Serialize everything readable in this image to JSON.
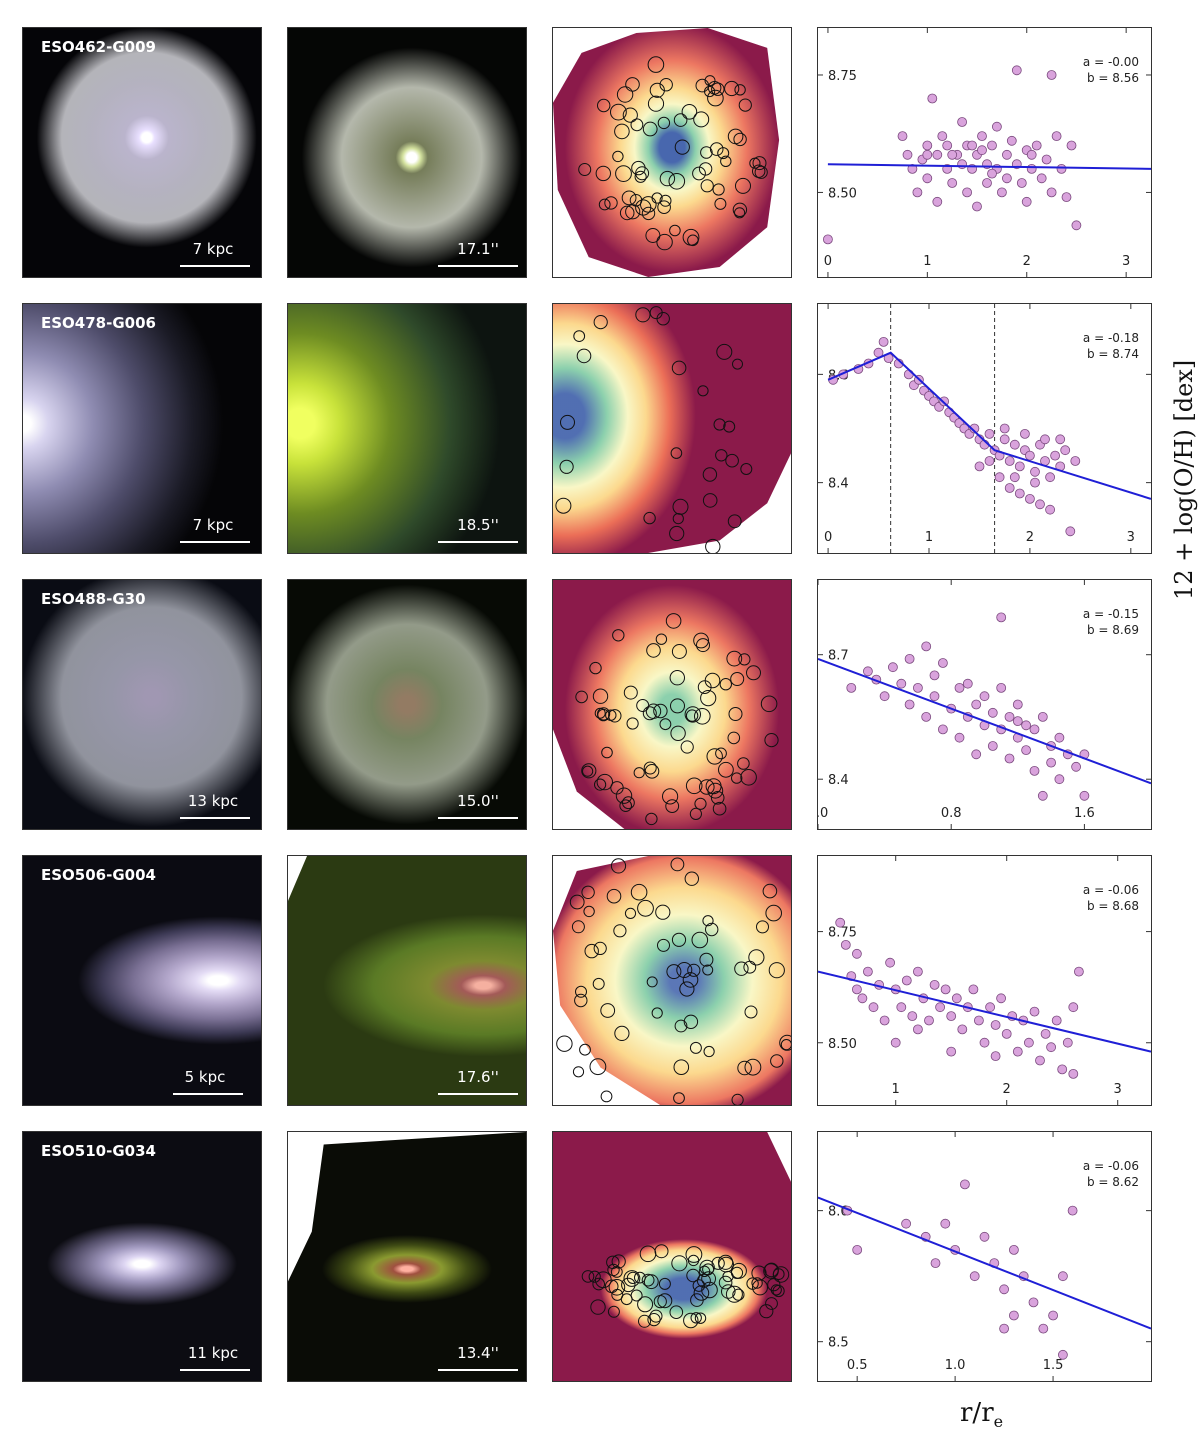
{
  "figure": {
    "ylabel": "12 + log(O/H) [dex]",
    "xlabel": "r/r",
    "xlabel_sub": "e"
  },
  "rows": [
    {
      "name": "ESO462-G009",
      "phys_scale": "7 kpc",
      "ang_scale": "17.1''"
    },
    {
      "name": "ESO478-G006",
      "phys_scale": "7 kpc",
      "ang_scale": "18.5''"
    },
    {
      "name": "ESO488-G30",
      "phys_scale": "13 kpc",
      "ang_scale": "15.0''"
    },
    {
      "name": "ESO506-G004",
      "phys_scale": "5 kpc",
      "ang_scale": "17.6''"
    },
    {
      "name": "ESO510-G034",
      "phys_scale": "11 kpc",
      "ang_scale": "13.4''"
    }
  ],
  "colors": {
    "points": "#d9a3dc",
    "point_edge": "#7a4a7e",
    "fit_line": "#1f1fd6"
  },
  "chart_data": [
    {
      "type": "scatter",
      "annotation_a": "a = -0.00",
      "annotation_b": "b = 8.56",
      "xlim": [
        -0.1,
        3.25
      ],
      "ylim": [
        8.32,
        8.85
      ],
      "xticks": [
        0,
        1,
        2,
        3
      ],
      "xtick_labels": [
        "0",
        "1",
        "2",
        "3"
      ],
      "yticks": [
        8.5,
        8.75
      ],
      "ytick_labels": [
        "8.50",
        "8.75"
      ],
      "fit": [
        [
          0.0,
          8.56
        ],
        [
          3.25,
          8.55
        ]
      ],
      "vlines": [],
      "points": [
        [
          0.0,
          8.4
        ],
        [
          0.75,
          8.62
        ],
        [
          0.8,
          8.58
        ],
        [
          0.85,
          8.55
        ],
        [
          0.9,
          8.5
        ],
        [
          0.95,
          8.57
        ],
        [
          1.0,
          8.6
        ],
        [
          1.0,
          8.53
        ],
        [
          1.05,
          8.7
        ],
        [
          1.1,
          8.58
        ],
        [
          1.1,
          8.48
        ],
        [
          1.15,
          8.62
        ],
        [
          1.2,
          8.55
        ],
        [
          1.2,
          8.6
        ],
        [
          1.25,
          8.52
        ],
        [
          1.3,
          8.58
        ],
        [
          1.35,
          8.65
        ],
        [
          1.35,
          8.56
        ],
        [
          1.4,
          8.5
        ],
        [
          1.4,
          8.6
        ],
        [
          1.45,
          8.55
        ],
        [
          1.5,
          8.58
        ],
        [
          1.5,
          8.47
        ],
        [
          1.55,
          8.62
        ],
        [
          1.6,
          8.56
        ],
        [
          1.6,
          8.52
        ],
        [
          1.65,
          8.6
        ],
        [
          1.7,
          8.64
        ],
        [
          1.7,
          8.55
        ],
        [
          1.75,
          8.5
        ],
        [
          1.8,
          8.58
        ],
        [
          1.8,
          8.53
        ],
        [
          1.85,
          8.61
        ],
        [
          1.9,
          8.56
        ],
        [
          1.95,
          8.52
        ],
        [
          2.0,
          8.59
        ],
        [
          2.0,
          8.48
        ],
        [
          2.05,
          8.55
        ],
        [
          2.1,
          8.6
        ],
        [
          2.15,
          8.53
        ],
        [
          2.2,
          8.57
        ],
        [
          2.25,
          8.5
        ],
        [
          2.3,
          8.62
        ],
        [
          2.35,
          8.55
        ],
        [
          2.4,
          8.49
        ],
        [
          2.45,
          8.6
        ],
        [
          2.5,
          8.43
        ],
        [
          1.9,
          8.76
        ],
        [
          2.25,
          8.75
        ],
        [
          1.25,
          8.58
        ],
        [
          1.55,
          8.59
        ],
        [
          1.0,
          8.58
        ],
        [
          2.05,
          8.58
        ],
        [
          1.45,
          8.6
        ],
        [
          1.65,
          8.54
        ]
      ]
    },
    {
      "type": "scatter",
      "annotation_a": "a = -0.18",
      "annotation_b": "b = 8.74",
      "xlim": [
        -0.1,
        3.2
      ],
      "ylim": [
        8.27,
        8.73
      ],
      "xticks": [
        0,
        1,
        2,
        3
      ],
      "xtick_labels": [
        "0",
        "1",
        "2",
        "3"
      ],
      "yticks": [
        8.4,
        8.6
      ],
      "ytick_labels": [
        "8.4",
        "8.6"
      ],
      "fit": [
        [
          0.0,
          8.59
        ],
        [
          0.62,
          8.64
        ],
        [
          1.65,
          8.46
        ],
        [
          3.2,
          8.37
        ]
      ],
      "vlines": [
        0.62,
        1.65
      ],
      "points": [
        [
          0.05,
          8.59
        ],
        [
          0.15,
          8.6
        ],
        [
          0.3,
          8.61
        ],
        [
          0.4,
          8.62
        ],
        [
          0.5,
          8.64
        ],
        [
          0.55,
          8.66
        ],
        [
          0.6,
          8.63
        ],
        [
          0.7,
          8.62
        ],
        [
          0.8,
          8.6
        ],
        [
          0.85,
          8.58
        ],
        [
          0.9,
          8.59
        ],
        [
          0.95,
          8.57
        ],
        [
          1.0,
          8.56
        ],
        [
          1.05,
          8.55
        ],
        [
          1.1,
          8.54
        ],
        [
          1.15,
          8.55
        ],
        [
          1.2,
          8.53
        ],
        [
          1.25,
          8.52
        ],
        [
          1.3,
          8.51
        ],
        [
          1.35,
          8.5
        ],
        [
          1.4,
          8.49
        ],
        [
          1.45,
          8.5
        ],
        [
          1.5,
          8.48
        ],
        [
          1.55,
          8.47
        ],
        [
          1.6,
          8.49
        ],
        [
          1.65,
          8.46
        ],
        [
          1.7,
          8.45
        ],
        [
          1.75,
          8.48
        ],
        [
          1.8,
          8.44
        ],
        [
          1.85,
          8.47
        ],
        [
          1.9,
          8.43
        ],
        [
          1.95,
          8.46
        ],
        [
          2.0,
          8.45
        ],
        [
          2.05,
          8.42
        ],
        [
          2.1,
          8.47
        ],
        [
          2.15,
          8.44
        ],
        [
          2.2,
          8.41
        ],
        [
          2.25,
          8.45
        ],
        [
          2.3,
          8.43
        ],
        [
          2.35,
          8.46
        ],
        [
          1.7,
          8.41
        ],
        [
          1.8,
          8.39
        ],
        [
          1.9,
          8.38
        ],
        [
          2.0,
          8.37
        ],
        [
          2.1,
          8.36
        ],
        [
          2.2,
          8.35
        ],
        [
          2.4,
          8.31
        ],
        [
          1.75,
          8.5
        ],
        [
          1.95,
          8.49
        ],
        [
          2.15,
          8.48
        ],
        [
          2.3,
          8.48
        ],
        [
          2.45,
          8.44
        ],
        [
          1.85,
          8.41
        ],
        [
          2.05,
          8.4
        ],
        [
          1.6,
          8.44
        ],
        [
          1.5,
          8.43
        ]
      ]
    },
    {
      "type": "scatter",
      "annotation_a": "a = -0.15",
      "annotation_b": "b = 8.69",
      "xlim": [
        0.0,
        2.0
      ],
      "ylim": [
        8.28,
        8.88
      ],
      "xticks": [
        0.0,
        0.8,
        1.6
      ],
      "xtick_labels": [
        "0.0",
        "0.8",
        "1.6"
      ],
      "yticks": [
        8.4,
        8.7
      ],
      "ytick_labels": [
        "8.4",
        "8.7"
      ],
      "fit": [
        [
          0.0,
          8.69
        ],
        [
          2.0,
          8.39
        ]
      ],
      "vlines": [],
      "points": [
        [
          0.2,
          8.62
        ],
        [
          0.3,
          8.66
        ],
        [
          0.35,
          8.64
        ],
        [
          0.4,
          8.6
        ],
        [
          0.45,
          8.67
        ],
        [
          0.5,
          8.63
        ],
        [
          0.55,
          8.58
        ],
        [
          0.6,
          8.62
        ],
        [
          0.65,
          8.72
        ],
        [
          0.65,
          8.55
        ],
        [
          0.7,
          8.6
        ],
        [
          0.75,
          8.68
        ],
        [
          0.75,
          8.52
        ],
        [
          0.8,
          8.57
        ],
        [
          0.85,
          8.62
        ],
        [
          0.85,
          8.5
        ],
        [
          0.9,
          8.55
        ],
        [
          0.95,
          8.58
        ],
        [
          0.95,
          8.46
        ],
        [
          1.0,
          8.53
        ],
        [
          1.0,
          8.6
        ],
        [
          1.05,
          8.56
        ],
        [
          1.05,
          8.48
        ],
        [
          1.1,
          8.52
        ],
        [
          1.1,
          8.79
        ],
        [
          1.15,
          8.55
        ],
        [
          1.15,
          8.45
        ],
        [
          1.2,
          8.5
        ],
        [
          1.2,
          8.58
        ],
        [
          1.25,
          8.47
        ],
        [
          1.3,
          8.52
        ],
        [
          1.3,
          8.42
        ],
        [
          1.35,
          8.55
        ],
        [
          1.35,
          8.36
        ],
        [
          1.4,
          8.48
        ],
        [
          1.4,
          8.44
        ],
        [
          1.45,
          8.5
        ],
        [
          1.45,
          8.4
        ],
        [
          1.5,
          8.46
        ],
        [
          1.55,
          8.43
        ],
        [
          1.6,
          8.46
        ],
        [
          1.6,
          8.36
        ],
        [
          1.1,
          8.62
        ],
        [
          1.2,
          8.54
        ],
        [
          0.9,
          8.63
        ],
        [
          0.7,
          8.65
        ],
        [
          0.55,
          8.69
        ],
        [
          1.25,
          8.53
        ]
      ]
    },
    {
      "type": "scatter",
      "annotation_a": "a = -0.06",
      "annotation_b": "b = 8.68",
      "xlim": [
        0.3,
        3.3
      ],
      "ylim": [
        8.36,
        8.92
      ],
      "xticks": [
        1,
        2,
        3
      ],
      "xtick_labels": [
        "1",
        "2",
        "3"
      ],
      "yticks": [
        8.5,
        8.75
      ],
      "ytick_labels": [
        "8.50",
        "8.75"
      ],
      "fit": [
        [
          0.3,
          8.66
        ],
        [
          3.3,
          8.48
        ]
      ],
      "vlines": [],
      "points": [
        [
          0.5,
          8.77
        ],
        [
          0.55,
          8.72
        ],
        [
          0.6,
          8.65
        ],
        [
          0.65,
          8.62
        ],
        [
          0.7,
          8.6
        ],
        [
          0.75,
          8.66
        ],
        [
          0.8,
          8.58
        ],
        [
          0.85,
          8.63
        ],
        [
          0.9,
          8.55
        ],
        [
          0.95,
          8.68
        ],
        [
          1.0,
          8.62
        ],
        [
          1.05,
          8.58
        ],
        [
          1.1,
          8.64
        ],
        [
          1.15,
          8.56
        ],
        [
          1.2,
          8.66
        ],
        [
          1.25,
          8.6
        ],
        [
          1.3,
          8.55
        ],
        [
          1.35,
          8.63
        ],
        [
          1.4,
          8.58
        ],
        [
          1.45,
          8.62
        ],
        [
          1.5,
          8.56
        ],
        [
          1.55,
          8.6
        ],
        [
          1.6,
          8.53
        ],
        [
          1.65,
          8.58
        ],
        [
          1.7,
          8.62
        ],
        [
          1.75,
          8.55
        ],
        [
          1.8,
          8.5
        ],
        [
          1.85,
          8.58
        ],
        [
          1.9,
          8.54
        ],
        [
          1.95,
          8.6
        ],
        [
          2.0,
          8.52
        ],
        [
          2.05,
          8.56
        ],
        [
          2.1,
          8.48
        ],
        [
          2.15,
          8.55
        ],
        [
          2.2,
          8.5
        ],
        [
          2.25,
          8.57
        ],
        [
          2.3,
          8.46
        ],
        [
          2.35,
          8.52
        ],
        [
          2.4,
          8.49
        ],
        [
          2.45,
          8.55
        ],
        [
          2.5,
          8.44
        ],
        [
          2.55,
          8.5
        ],
        [
          2.6,
          8.58
        ],
        [
          2.65,
          8.66
        ],
        [
          1.0,
          8.5
        ],
        [
          1.5,
          8.48
        ],
        [
          1.9,
          8.47
        ],
        [
          2.6,
          8.43
        ],
        [
          0.65,
          8.7
        ],
        [
          1.2,
          8.53
        ]
      ]
    },
    {
      "type": "scatter",
      "annotation_a": "a = -0.06",
      "annotation_b": "b = 8.62",
      "xlim": [
        0.3,
        2.0
      ],
      "ylim": [
        8.47,
        8.66
      ],
      "xticks": [
        0.5,
        1.0,
        1.5
      ],
      "xtick_labels": [
        "0.5",
        "1.0",
        "1.5"
      ],
      "yticks": [
        8.5,
        8.6
      ],
      "ytick_labels": [
        "8.5",
        "8.6"
      ],
      "fit": [
        [
          0.3,
          8.61
        ],
        [
          2.0,
          8.51
        ]
      ],
      "vlines": [],
      "points": [
        [
          0.45,
          8.6
        ],
        [
          0.5,
          8.57
        ],
        [
          0.75,
          8.59
        ],
        [
          0.85,
          8.58
        ],
        [
          0.9,
          8.56
        ],
        [
          0.95,
          8.59
        ],
        [
          1.0,
          8.57
        ],
        [
          1.05,
          8.62
        ],
        [
          1.1,
          8.55
        ],
        [
          1.15,
          8.58
        ],
        [
          1.2,
          8.56
        ],
        [
          1.25,
          8.54
        ],
        [
          1.3,
          8.57
        ],
        [
          1.3,
          8.52
        ],
        [
          1.35,
          8.55
        ],
        [
          1.4,
          8.53
        ],
        [
          1.45,
          8.51
        ],
        [
          1.5,
          8.52
        ],
        [
          1.55,
          8.55
        ],
        [
          1.6,
          8.6
        ],
        [
          1.25,
          8.51
        ],
        [
          1.55,
          8.49
        ]
      ]
    }
  ]
}
